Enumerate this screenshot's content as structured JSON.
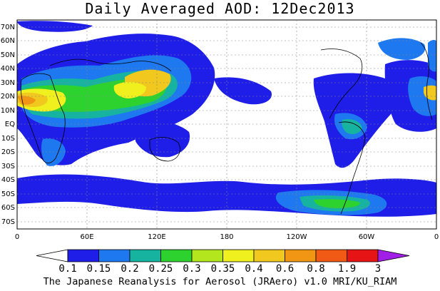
{
  "title": "Daily Averaged AOD: 12Dec2013",
  "footer": "The Japanese Reanalysis for Aerosol (JRAero) v1.0 MRI/KU_RIAM",
  "lat_labels": [
    "70N",
    "60N",
    "50N",
    "40N",
    "30N",
    "20N",
    "10N",
    "EQ",
    "10S",
    "20S",
    "30S",
    "40S",
    "50S",
    "60S",
    "70S"
  ],
  "lon_labels": [
    "0",
    "60E",
    "120E",
    "180",
    "120W",
    "60W",
    "0"
  ],
  "colorbar": {
    "levels": [
      "0.1",
      "0.15",
      "0.2",
      "0.25",
      "0.3",
      "0.35",
      "0.4",
      "0.6",
      "0.8",
      "1.9",
      "3"
    ],
    "colors": [
      "#ffffff",
      "#1e1ee8",
      "#1e78f0",
      "#16b4a0",
      "#2ed22e",
      "#b4e61e",
      "#f0f01e",
      "#f0c81e",
      "#f09614",
      "#f05a14",
      "#e61414",
      "#a01ee6"
    ]
  },
  "palette": {
    "blue": "#1e1ee8",
    "lightblue": "#1e78f0",
    "teal": "#16b4a0",
    "green": "#2ed22e",
    "yellowgreen": "#b4e61e",
    "yellow": "#f0f01e",
    "orange": "#f0c81e",
    "darkorange": "#f09614",
    "red": "#e61414"
  }
}
